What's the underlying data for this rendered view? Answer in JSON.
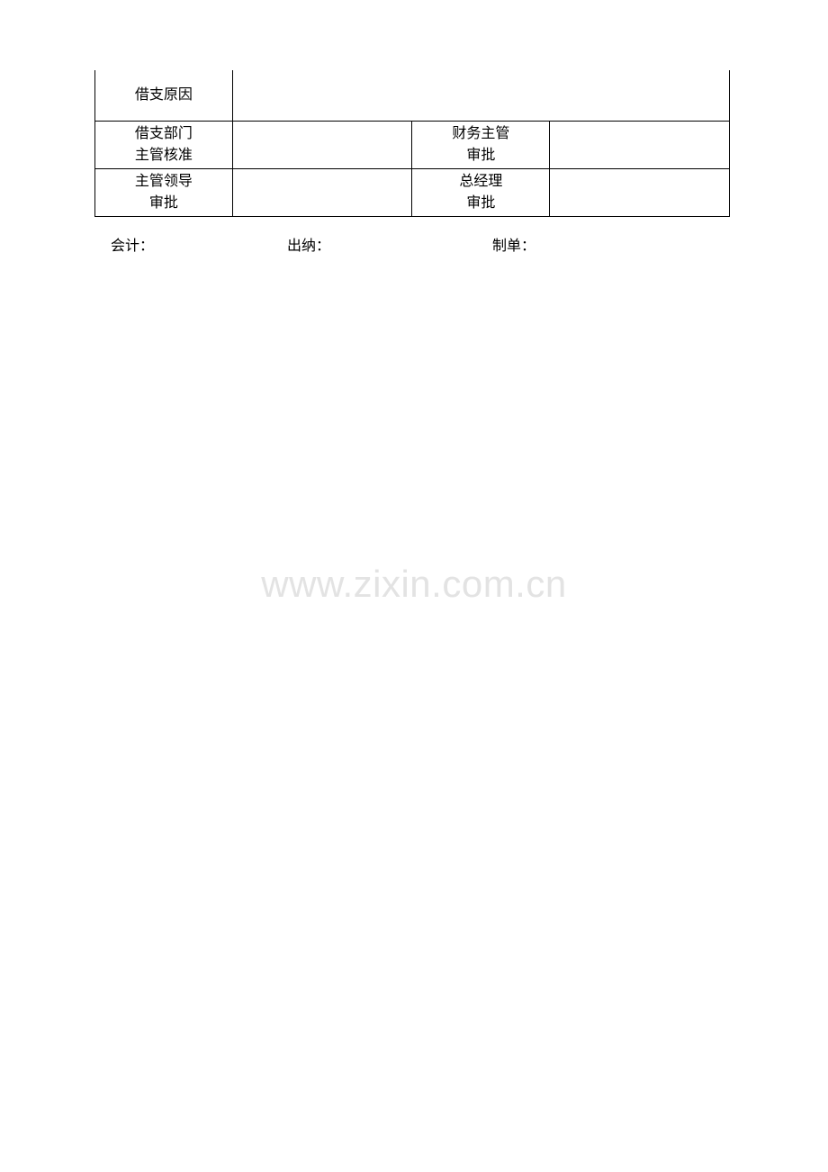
{
  "table": {
    "row1": {
      "label": "借支原因",
      "value": ""
    },
    "row2": {
      "label_left_line1": "借支部门",
      "label_left_line2": "主管核准",
      "value_left": "",
      "label_right_line1": "财务主管",
      "label_right_line2": "审批",
      "value_right": ""
    },
    "row3": {
      "label_left_line1": "主管领导",
      "label_left_line2": "审批",
      "value_left": "",
      "label_right_line1": "总经理",
      "label_right_line2": "审批",
      "value_right": ""
    }
  },
  "footer": {
    "item1": "会计：",
    "item2": "出纳：",
    "item3": "制单："
  },
  "watermark": "www.zixin.com.cn",
  "colors": {
    "border": "#000000",
    "text": "#000000",
    "background": "#ffffff",
    "watermark": "#e3e3e3"
  }
}
